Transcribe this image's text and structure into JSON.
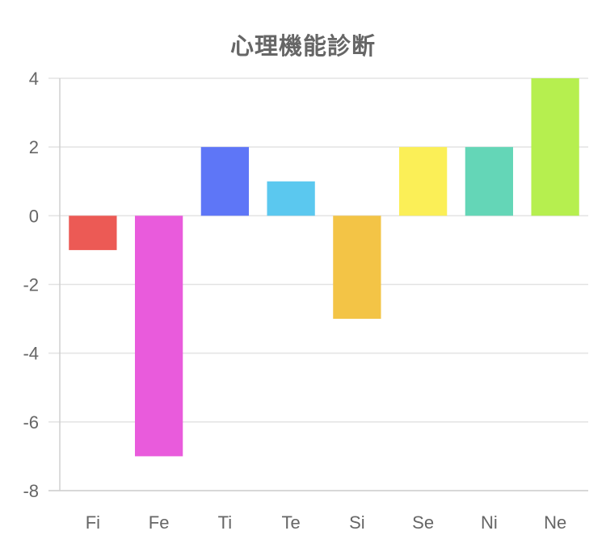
{
  "chart_data": {
    "type": "bar",
    "title": "心理機能診断",
    "xlabel": "",
    "ylabel": "",
    "categories": [
      "Fi",
      "Fe",
      "Ti",
      "Te",
      "Si",
      "Se",
      "Ni",
      "Ne"
    ],
    "values": [
      -1,
      -7,
      2,
      1,
      -3,
      2,
      2,
      4
    ],
    "colors": [
      "#ec5a55",
      "#e95bdc",
      "#5e76f7",
      "#5bc8ef",
      "#f3c446",
      "#fbef57",
      "#64d6b7",
      "#b6ef4f"
    ],
    "ylim": [
      -8,
      4
    ],
    "yticks": [
      "4",
      "2",
      "0",
      "-2",
      "-4",
      "-6",
      "-8"
    ],
    "grid": true,
    "legend": "none",
    "gridline_color": "#e3e3e3",
    "axis_color": "#d0d0d0",
    "text_color": "#666666"
  }
}
